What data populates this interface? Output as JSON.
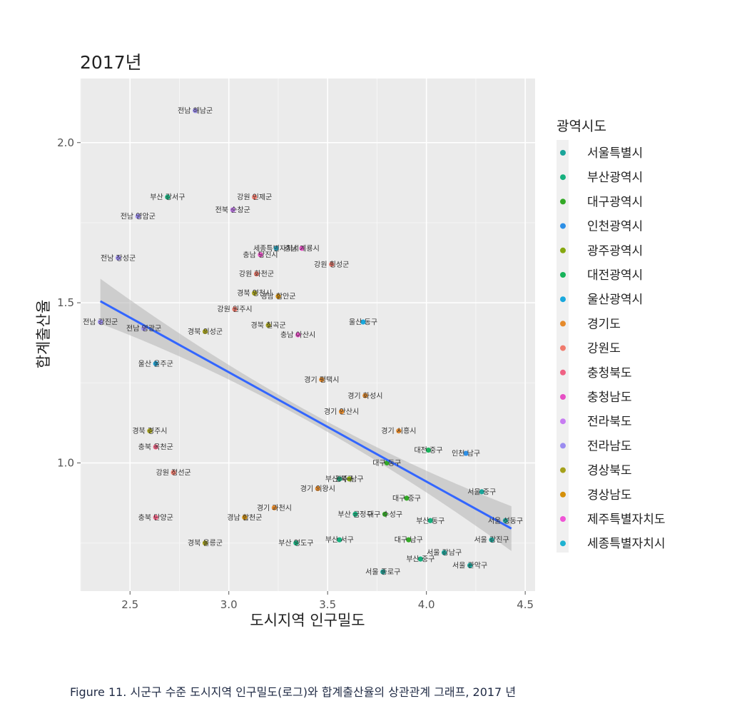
{
  "chart_data": {
    "type": "scatter",
    "title": "2017년",
    "xlabel": "도시지역 인구밀도",
    "ylabel": "합계출산율",
    "xlim": [
      2.25,
      4.55
    ],
    "ylim": [
      0.6,
      2.2
    ],
    "xticks": [
      2.5,
      3.0,
      3.5,
      4.0,
      4.5
    ],
    "yticks": [
      1.0,
      1.5,
      2.0
    ],
    "x_tick_labels": [
      "2.5",
      "3.0",
      "3.5",
      "4.0",
      "4.5"
    ],
    "y_tick_labels": [
      "1.0",
      "1.5",
      "2.0"
    ],
    "grid": true,
    "legend_position": "right",
    "legend": {
      "title": "광역시도",
      "entries": [
        {
          "label": "서울특별시",
          "color": "#1aa59a"
        },
        {
          "label": "부산광역시",
          "color": "#16b07e"
        },
        {
          "label": "대구광역시",
          "color": "#33a926"
        },
        {
          "label": "인천광역시",
          "color": "#2d8fe6"
        },
        {
          "label": "광주광역시",
          "color": "#86a80f"
        },
        {
          "label": "대전광역시",
          "color": "#17b35a"
        },
        {
          "label": "울산광역시",
          "color": "#19a8dd"
        },
        {
          "label": "경기도",
          "color": "#e58a2b"
        },
        {
          "label": "강원도",
          "color": "#f07a6c"
        },
        {
          "label": "충청북도",
          "color": "#ef6183"
        },
        {
          "label": "충청남도",
          "color": "#e650c4"
        },
        {
          "label": "전라북도",
          "color": "#c77cf2"
        },
        {
          "label": "전라남도",
          "color": "#9b8cf0"
        },
        {
          "label": "경상북도",
          "color": "#a5a11a"
        },
        {
          "label": "경상남도",
          "color": "#d5900a"
        },
        {
          "label": "제주특별자치도",
          "color": "#f055d6"
        },
        {
          "label": "세종특별자치시",
          "color": "#1fb2d1"
        }
      ]
    },
    "trend_line": {
      "x": [
        2.35,
        4.43
      ],
      "y": [
        1.505,
        0.795
      ]
    },
    "labeled_points": [
      {
        "label": "전남 해남군",
        "x": 2.83,
        "y": 2.1,
        "group": "전라남도"
      },
      {
        "label": "부산 강서구",
        "x": 2.69,
        "y": 1.83,
        "group": "부산광역시"
      },
      {
        "label": "강원 인제군",
        "x": 3.13,
        "y": 1.83,
        "group": "강원도"
      },
      {
        "label": "전북 순창군",
        "x": 3.02,
        "y": 1.79,
        "group": "전라북도"
      },
      {
        "label": "전남 영암군",
        "x": 2.54,
        "y": 1.77,
        "group": "전라남도"
      },
      {
        "label": "전남 장성군",
        "x": 2.44,
        "y": 1.64,
        "group": "전라남도"
      },
      {
        "label": "세종특별자치시",
        "x": 3.24,
        "y": 1.67,
        "group": "세종특별자치시"
      },
      {
        "label": "충남 계룡시",
        "x": 3.37,
        "y": 1.67,
        "group": "충청남도"
      },
      {
        "label": "충남 당진시",
        "x": 3.16,
        "y": 1.65,
        "group": "충청남도"
      },
      {
        "label": "강원 횡성군",
        "x": 3.52,
        "y": 1.62,
        "group": "강원도"
      },
      {
        "label": "강원 화천군",
        "x": 3.14,
        "y": 1.59,
        "group": "강원도"
      },
      {
        "label": "경북 영천시",
        "x": 3.13,
        "y": 1.53,
        "group": "경상북도"
      },
      {
        "label": "경남 함안군",
        "x": 3.25,
        "y": 1.52,
        "group": "경상남도"
      },
      {
        "label": "강원 원주시",
        "x": 3.03,
        "y": 1.48,
        "group": "강원도"
      },
      {
        "label": "전남 영광군",
        "x": 2.57,
        "y": 1.42,
        "group": "전라남도"
      },
      {
        "label": "전남 강진군",
        "x": 2.35,
        "y": 1.44,
        "group": "전라남도"
      },
      {
        "label": "울산 동구",
        "x": 3.68,
        "y": 1.44,
        "group": "울산광역시"
      },
      {
        "label": "경북 칠곡군",
        "x": 3.2,
        "y": 1.43,
        "group": "경상북도"
      },
      {
        "label": "충남 아산시",
        "x": 3.35,
        "y": 1.4,
        "group": "충청남도"
      },
      {
        "label": "경북 의성군",
        "x": 2.88,
        "y": 1.41,
        "group": "경상북도"
      },
      {
        "label": "울산 울주군",
        "x": 2.63,
        "y": 1.31,
        "group": "울산광역시"
      },
      {
        "label": "경기 평택시",
        "x": 3.47,
        "y": 1.26,
        "group": "경기도"
      },
      {
        "label": "경기 화성시",
        "x": 3.69,
        "y": 1.21,
        "group": "경기도"
      },
      {
        "label": "경기 안산시",
        "x": 3.57,
        "y": 1.16,
        "group": "경기도"
      },
      {
        "label": "경기 시흥시",
        "x": 3.86,
        "y": 1.1,
        "group": "경기도"
      },
      {
        "label": "경북 경주시",
        "x": 2.6,
        "y": 1.1,
        "group": "경상북도"
      },
      {
        "label": "충북 옥천군",
        "x": 2.63,
        "y": 1.05,
        "group": "충청북도"
      },
      {
        "label": "인천 남구",
        "x": 4.2,
        "y": 1.03,
        "group": "인천광역시"
      },
      {
        "label": "강원 정선군",
        "x": 2.72,
        "y": 0.97,
        "group": "강원도"
      },
      {
        "label": "경기 의왕시",
        "x": 3.45,
        "y": 0.92,
        "group": "경기도"
      },
      {
        "label": "충북 단양군",
        "x": 2.63,
        "y": 0.83,
        "group": "충청북도"
      },
      {
        "label": "경남 합천군",
        "x": 3.08,
        "y": 0.83,
        "group": "경상남도"
      },
      {
        "label": "경기 과천시",
        "x": 3.23,
        "y": 0.86,
        "group": "경기도"
      },
      {
        "label": "부산 금정구",
        "x": 3.64,
        "y": 0.84,
        "group": "부산광역시"
      },
      {
        "label": "대구 수성구",
        "x": 3.79,
        "y": 0.84,
        "group": "대구광역시"
      },
      {
        "label": "경북 울릉군",
        "x": 2.88,
        "y": 0.75,
        "group": "경상북도"
      },
      {
        "label": "부산 영도구",
        "x": 3.34,
        "y": 0.75,
        "group": "부산광역시"
      },
      {
        "label": "부산 서구",
        "x": 3.56,
        "y": 0.76,
        "group": "부산광역시"
      },
      {
        "label": "대구 남구",
        "x": 3.91,
        "y": 0.76,
        "group": "대구광역시"
      },
      {
        "label": "서울 강진구",
        "x": 4.33,
        "y": 0.76,
        "group": "서울특별시"
      },
      {
        "label": "서울 강남구",
        "x": 4.09,
        "y": 0.72,
        "group": "서울특별시"
      },
      {
        "label": "부산 중구",
        "x": 3.97,
        "y": 0.7,
        "group": "부산광역시"
      },
      {
        "label": "서울 관악구",
        "x": 4.22,
        "y": 0.68,
        "group": "서울특별시"
      },
      {
        "label": "서울 종로구",
        "x": 3.78,
        "y": 0.66,
        "group": "서울특별시"
      },
      {
        "label": "서울 중구",
        "x": 4.28,
        "y": 0.91,
        "group": "서울특별시"
      },
      {
        "label": "서울 성동구",
        "x": 4.4,
        "y": 0.82,
        "group": "서울특별시"
      },
      {
        "label": "부산 동구",
        "x": 4.02,
        "y": 0.82,
        "group": "부산광역시"
      },
      {
        "label": "대구 중구",
        "x": 3.9,
        "y": 0.89,
        "group": "대구광역시"
      },
      {
        "label": "대전 중구",
        "x": 4.01,
        "y": 1.04,
        "group": "대전광역시"
      },
      {
        "label": "부산 북구",
        "x": 3.56,
        "y": 0.95,
        "group": "부산광역시"
      },
      {
        "label": "광주 남구",
        "x": 3.61,
        "y": 0.95,
        "group": "광주광역시"
      },
      {
        "label": "대구 동구",
        "x": 3.8,
        "y": 1.0,
        "group": "대구광역시"
      }
    ],
    "unlabeled_points_note": ""
  },
  "caption": "Figure 11. 시군구 수준 도시지역 인구밀도(로그)와 합계출산율의 상관관계 그래프, 2017 년"
}
